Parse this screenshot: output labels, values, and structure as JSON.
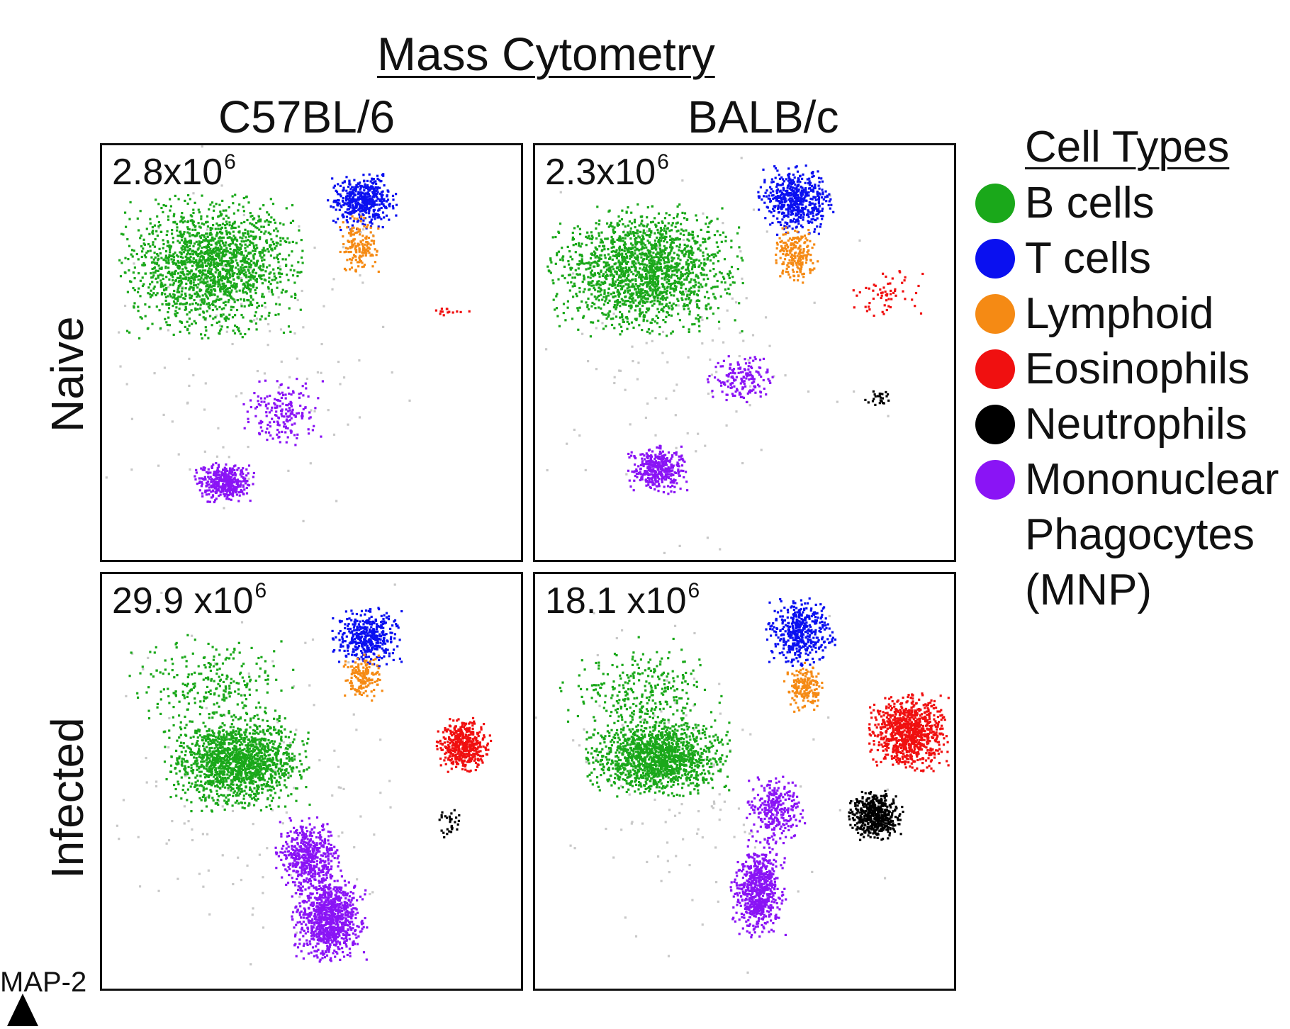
{
  "figure": {
    "title": "Mass Cytometry",
    "columns": [
      "C57BL/6",
      "BALB/c"
    ],
    "rows": [
      "Naive",
      "Infected"
    ],
    "axis_label": "MAP-2"
  },
  "legend": {
    "title": "Cell Types",
    "items": [
      {
        "label": "B cells",
        "color": "#1aa81a"
      },
      {
        "label": "T cells",
        "color": "#0a10f0"
      },
      {
        "label": "Lymphoid",
        "color": "#f58a14"
      },
      {
        "label": "Eosinophils",
        "color": "#f01010"
      },
      {
        "label": "Neutrophils",
        "color": "#000000"
      },
      {
        "label": "Mononuclear",
        "label2": "Phagocytes",
        "label3": "(MNP)",
        "color": "#8a14f5"
      }
    ]
  },
  "chart_data": [
    {
      "type": "scatter",
      "title": "",
      "column": "C57BL/6",
      "row": "Naive",
      "count_base": "2.8x10",
      "count_exp": "6",
      "xlim": [
        0,
        1
      ],
      "ylim": [
        0,
        1
      ],
      "clusters": [
        {
          "type": "B cells",
          "color": "#1aa81a",
          "cx": 0.26,
          "cy": 0.71,
          "rx": 0.185,
          "ry": 0.145,
          "n": 1700
        },
        {
          "type": "T cells",
          "color": "#0a10f0",
          "cx": 0.62,
          "cy": 0.87,
          "rx": 0.07,
          "ry": 0.06,
          "n": 450
        },
        {
          "type": "Lymphoid",
          "color": "#f58a14",
          "cx": 0.61,
          "cy": 0.76,
          "rx": 0.04,
          "ry": 0.06,
          "n": 160
        },
        {
          "type": "Eosinophils",
          "color": "#f01010",
          "cx": 0.83,
          "cy": 0.6,
          "rx": 0.07,
          "ry": 0.012,
          "n": 14
        },
        {
          "type": "Mononuclear Phagocytes",
          "color": "#8a14f5",
          "cx": 0.29,
          "cy": 0.19,
          "rx": 0.06,
          "ry": 0.04,
          "n": 420
        },
        {
          "type": "Mononuclear Phagocytes",
          "color": "#8a14f5",
          "cx": 0.43,
          "cy": 0.36,
          "rx": 0.08,
          "ry": 0.07,
          "n": 180
        }
      ]
    },
    {
      "type": "scatter",
      "title": "",
      "column": "BALB/c",
      "row": "Naive",
      "count_base": "2.3x10",
      "count_exp": "6",
      "xlim": [
        0,
        1
      ],
      "ylim": [
        0,
        1
      ],
      "clusters": [
        {
          "type": "B cells",
          "color": "#1aa81a",
          "cx": 0.26,
          "cy": 0.7,
          "rx": 0.195,
          "ry": 0.135,
          "n": 1700
        },
        {
          "type": "T cells",
          "color": "#0a10f0",
          "cx": 0.62,
          "cy": 0.87,
          "rx": 0.075,
          "ry": 0.07,
          "n": 520
        },
        {
          "type": "Lymphoid",
          "color": "#f58a14",
          "cx": 0.62,
          "cy": 0.74,
          "rx": 0.045,
          "ry": 0.06,
          "n": 200
        },
        {
          "type": "Eosinophils",
          "color": "#f01010",
          "cx": 0.84,
          "cy": 0.64,
          "rx": 0.07,
          "ry": 0.05,
          "n": 60
        },
        {
          "type": "Neutrophils",
          "color": "#000000",
          "cx": 0.82,
          "cy": 0.39,
          "rx": 0.03,
          "ry": 0.02,
          "n": 25
        },
        {
          "type": "Mononuclear Phagocytes",
          "color": "#8a14f5",
          "cx": 0.29,
          "cy": 0.22,
          "rx": 0.06,
          "ry": 0.05,
          "n": 380
        },
        {
          "type": "Mononuclear Phagocytes",
          "color": "#8a14f5",
          "cx": 0.49,
          "cy": 0.44,
          "rx": 0.07,
          "ry": 0.05,
          "n": 160
        }
      ]
    },
    {
      "type": "scatter",
      "title": "",
      "column": "C57BL/6",
      "row": "Infected",
      "count_base": "29.9 x10",
      "count_exp": "6",
      "xlim": [
        0,
        1
      ],
      "ylim": [
        0,
        1
      ],
      "clusters": [
        {
          "type": "B cells",
          "color": "#1aa81a",
          "cx": 0.32,
          "cy": 0.55,
          "rx": 0.145,
          "ry": 0.1,
          "n": 1500
        },
        {
          "type": "B cells",
          "color": "#1aa81a",
          "cx": 0.26,
          "cy": 0.74,
          "rx": 0.17,
          "ry": 0.1,
          "n": 260
        },
        {
          "type": "T cells",
          "color": "#0a10f0",
          "cx": 0.63,
          "cy": 0.85,
          "rx": 0.07,
          "ry": 0.06,
          "n": 420
        },
        {
          "type": "Lymphoid",
          "color": "#f58a14",
          "cx": 0.62,
          "cy": 0.75,
          "rx": 0.04,
          "ry": 0.05,
          "n": 150
        },
        {
          "type": "Eosinophils",
          "color": "#f01010",
          "cx": 0.86,
          "cy": 0.59,
          "rx": 0.055,
          "ry": 0.055,
          "n": 450
        },
        {
          "type": "Neutrophils",
          "color": "#000000",
          "cx": 0.83,
          "cy": 0.4,
          "rx": 0.025,
          "ry": 0.035,
          "n": 30
        },
        {
          "type": "Mononuclear Phagocytes",
          "color": "#8a14f5",
          "cx": 0.54,
          "cy": 0.17,
          "rx": 0.075,
          "ry": 0.09,
          "n": 900
        },
        {
          "type": "Mononuclear Phagocytes",
          "color": "#8a14f5",
          "cx": 0.49,
          "cy": 0.32,
          "rx": 0.065,
          "ry": 0.08,
          "n": 520
        }
      ]
    },
    {
      "type": "scatter",
      "title": "",
      "column": "BALB/c",
      "row": "Infected",
      "count_base": "18.1 x10",
      "count_exp": "6",
      "xlim": [
        0,
        1
      ],
      "ylim": [
        0,
        1
      ],
      "clusters": [
        {
          "type": "B cells",
          "color": "#1aa81a",
          "cx": 0.29,
          "cy": 0.56,
          "rx": 0.145,
          "ry": 0.08,
          "n": 1400
        },
        {
          "type": "B cells",
          "color": "#1aa81a",
          "cx": 0.26,
          "cy": 0.72,
          "rx": 0.17,
          "ry": 0.11,
          "n": 300
        },
        {
          "type": "T cells",
          "color": "#0a10f0",
          "cx": 0.63,
          "cy": 0.86,
          "rx": 0.07,
          "ry": 0.07,
          "n": 430
        },
        {
          "type": "Lymphoid",
          "color": "#f58a14",
          "cx": 0.64,
          "cy": 0.73,
          "rx": 0.04,
          "ry": 0.05,
          "n": 180
        },
        {
          "type": "Eosinophils",
          "color": "#f01010",
          "cx": 0.89,
          "cy": 0.62,
          "rx": 0.08,
          "ry": 0.08,
          "n": 900
        },
        {
          "type": "Neutrophils",
          "color": "#000000",
          "cx": 0.81,
          "cy": 0.42,
          "rx": 0.055,
          "ry": 0.05,
          "n": 500
        },
        {
          "type": "Mononuclear Phagocytes",
          "color": "#8a14f5",
          "cx": 0.53,
          "cy": 0.24,
          "rx": 0.055,
          "ry": 0.1,
          "n": 650
        },
        {
          "type": "Mononuclear Phagocytes",
          "color": "#8a14f5",
          "cx": 0.57,
          "cy": 0.43,
          "rx": 0.06,
          "ry": 0.07,
          "n": 280
        }
      ]
    }
  ]
}
